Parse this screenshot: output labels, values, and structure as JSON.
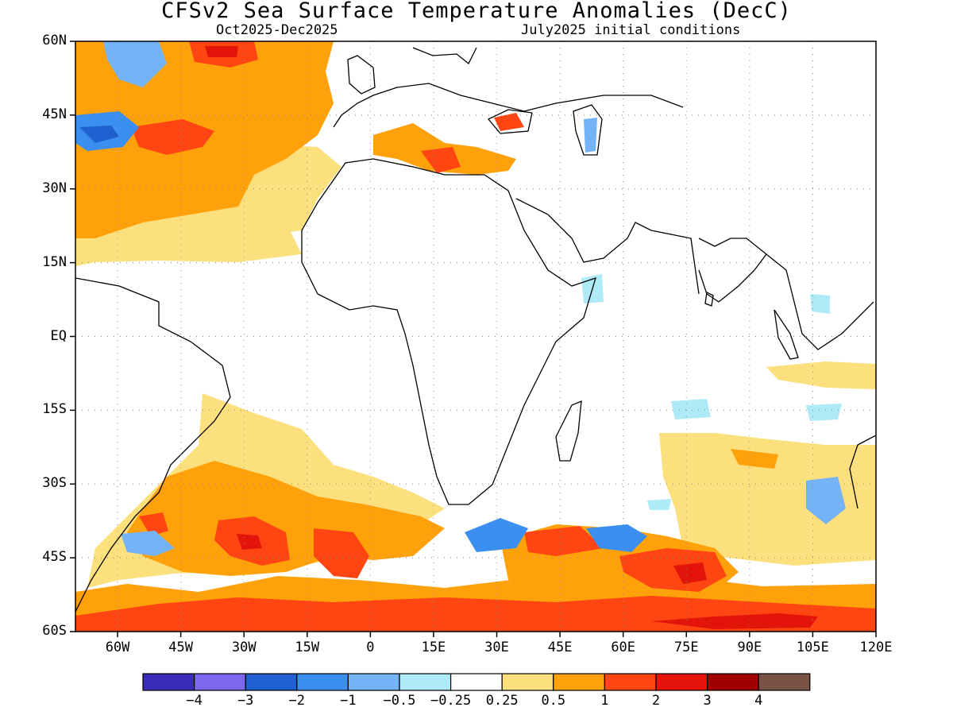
{
  "header": {
    "title": "CFSv2 Sea Surface Temperature Anomalies (DecC)",
    "valid_period": "Oct2025-Dec2025",
    "initial_conditions": "July2025 initial conditions"
  },
  "axes": {
    "lat_labels": [
      "60N",
      "45N",
      "30N",
      "15N",
      "EQ",
      "15S",
      "30S",
      "45S",
      "60S"
    ],
    "lon_labels": [
      "60W",
      "45W",
      "30W",
      "15W",
      "0",
      "15E",
      "30E",
      "45E",
      "60E",
      "75E",
      "90E",
      "105E",
      "120E"
    ],
    "lat_range": [
      -60,
      60
    ],
    "lon_range": [
      -70,
      120
    ],
    "grid": "dotted"
  },
  "colorbar": {
    "labels": [
      "-4",
      "-3",
      "-2",
      "-1",
      "-0.5",
      "-0.25",
      "0.25",
      "0.5",
      "1",
      "2",
      "3",
      "4"
    ],
    "colors": [
      "#3c2db8",
      "#7b68ee",
      "#1f5fcf",
      "#3b8ff0",
      "#74b3f5",
      "#aeeaf7",
      "#ffffff",
      "#fde07e",
      "#ffa10a",
      "#ff4612",
      "#e3150b",
      "#a10000",
      "#7a5246"
    ]
  }
}
